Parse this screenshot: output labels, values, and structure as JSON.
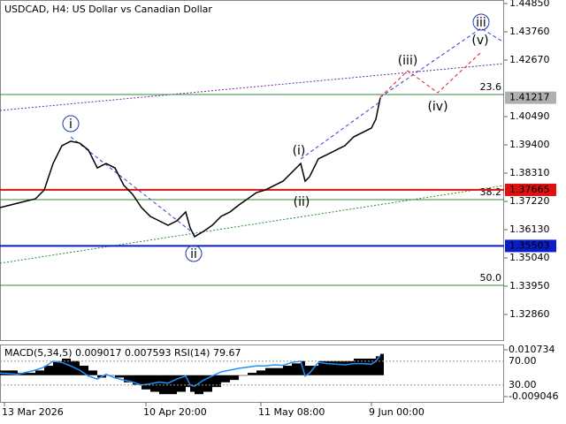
{
  "chart_data": [
    {
      "type": "line",
      "title": "USDCAD, H4:  US Dollar vs Canadian Dollar",
      "x": [
        0,
        20,
        40,
        50,
        60,
        70,
        80,
        90,
        100,
        110,
        120,
        130,
        140,
        150,
        160,
        170,
        180,
        190,
        200,
        210,
        215,
        220,
        230,
        240,
        250,
        260,
        270,
        280,
        290,
        300,
        310,
        320,
        330,
        340,
        345,
        350,
        360,
        370,
        380,
        390,
        400,
        410,
        420,
        425,
        430
      ],
      "values": [
        1.3698,
        1.3715,
        1.3732,
        1.3766,
        1.3868,
        1.3937,
        1.3954,
        1.3947,
        1.392,
        1.3851,
        1.3868,
        1.3851,
        1.3784,
        1.3749,
        1.3698,
        1.3664,
        1.3647,
        1.363,
        1.3647,
        1.3681,
        1.362,
        1.3586,
        1.3606,
        1.363,
        1.3664,
        1.3681,
        1.3708,
        1.3732,
        1.3756,
        1.3766,
        1.3783,
        1.38,
        1.3834,
        1.3868,
        1.38,
        1.3817,
        1.3886,
        1.3903,
        1.392,
        1.3937,
        1.3971,
        1.3988,
        1.4005,
        1.4039,
        1.4122
      ],
      "color": "#000000",
      "xlim": [
        0,
        570
      ],
      "ylim": [
        1.31872,
        1.44986
      ],
      "xticks": [
        {
          "value": 5,
          "label": "13 Mar 2026"
        },
        {
          "value": 165,
          "label": "10 Apr 20:00"
        },
        {
          "value": 295,
          "label": "11 May 08:00"
        },
        {
          "value": 420,
          "label": "9 Jun 00:00"
        }
      ],
      "yticks": [
        {
          "value": 1.4485,
          "label": "1.44850"
        },
        {
          "value": 1.4376,
          "label": "1.43760"
        },
        {
          "value": 1.4267,
          "label": "1.42670"
        },
        {
          "value": 1.4049,
          "label": "1.40490"
        },
        {
          "value": 1.394,
          "label": "1.39400"
        },
        {
          "value": 1.3831,
          "label": "1.38310"
        },
        {
          "value": 1.3722,
          "label": "1.37220"
        },
        {
          "value": 1.3613,
          "label": "1.36130"
        },
        {
          "value": 1.3504,
          "label": "1.35040"
        },
        {
          "value": 1.3395,
          "label": "1.33950"
        },
        {
          "value": 1.3286,
          "label": "1.32860"
        }
      ],
      "levels": [
        {
          "value": 1.37665,
          "color": "#e01010"
        },
        {
          "value": 1.35503,
          "color": "#0a1ec8"
        },
        {
          "value": 1.41217,
          "color": "#b0b0b0"
        }
      ],
      "fib_levels": [
        {
          "label": "23.6",
          "price": 1.41341
        },
        {
          "label": "38.2",
          "price": 1.37288
        },
        {
          "label": "50.0",
          "price": 1.33984
        }
      ],
      "fib_color": "#3a8a3a",
      "annotations": [
        {
          "text": "i",
          "color": "#1a3ab0"
        },
        {
          "text": "ii",
          "color": "#1a3ab0"
        },
        {
          "text": "iii",
          "color": "#1a3ab0"
        },
        {
          "text": "(i)",
          "color": "#d02020"
        },
        {
          "text": "(ii)",
          "color": "#d02020"
        },
        {
          "text": "(iii)",
          "color": "#d02020"
        },
        {
          "text": "(iv)",
          "color": "#d02020"
        },
        {
          "text": "(v)",
          "color": "#d02020"
        }
      ]
    },
    {
      "type": "bar",
      "title": "MACD(5,34,5) 0.009017 0.007593 RSI(14) 79.67",
      "values": [
        0.002,
        0.001,
        0.002,
        0.004,
        0.006,
        0.007,
        0.006,
        0.004,
        0.002,
        -0.001,
        0.0,
        -0.001,
        -0.003,
        -0.004,
        -0.006,
        -0.007,
        -0.008,
        -0.008,
        -0.007,
        -0.005,
        -0.007,
        -0.008,
        -0.007,
        -0.005,
        -0.003,
        -0.002,
        0.0,
        0.001,
        0.002,
        0.003,
        0.003,
        0.004,
        0.005,
        0.006,
        0.004,
        0.004,
        0.006,
        0.006,
        0.006,
        0.006,
        0.007,
        0.007,
        0.007,
        0.008,
        0.009017
      ],
      "color": "#000000",
      "rsi_values": [
        50,
        48,
        55,
        60,
        70,
        68,
        62,
        55,
        45,
        40,
        48,
        42,
        38,
        35,
        30,
        32,
        35,
        33,
        40,
        45,
        30,
        28,
        38,
        45,
        52,
        55,
        58,
        60,
        62,
        62,
        64,
        63,
        68,
        70,
        45,
        50,
        68,
        66,
        65,
        64,
        66,
        66,
        65,
        70,
        79.67
      ],
      "rsi_color": "#1e90ff",
      "ylim": [
        -0.009046,
        0.010734
      ],
      "yticks": [
        0.010734,
        -0.009046
      ],
      "rsi_ylim": [
        0,
        100
      ],
      "rsi_yticks": [
        {
          "value": 70,
          "label": "70.00"
        },
        {
          "value": 30,
          "label": "30.00"
        }
      ]
    }
  ]
}
